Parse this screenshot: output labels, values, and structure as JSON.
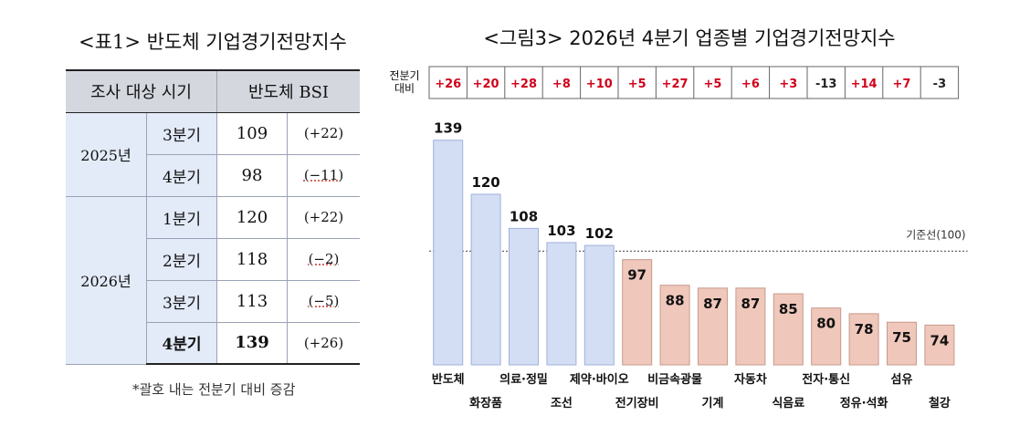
{
  "table": {
    "title": "<표1> 반도체 기업경기전망지수",
    "headers": [
      "조사 대상 시기",
      "반도체 BSI"
    ],
    "groups": [
      {
        "year": "2025년",
        "rows": [
          {
            "quarter": "3분기",
            "value": "109",
            "change": "(+22)",
            "negative": false,
            "bold": false
          },
          {
            "quarter": "4분기",
            "value": "98",
            "change": "(−11)",
            "negative": true,
            "bold": false
          }
        ]
      },
      {
        "year": "2026년",
        "rows": [
          {
            "quarter": "1분기",
            "value": "120",
            "change": "(+22)",
            "negative": false,
            "bold": false
          },
          {
            "quarter": "2분기",
            "value": "118",
            "change": "(−2)",
            "negative": true,
            "bold": false
          },
          {
            "quarter": "3분기",
            "value": "113",
            "change": "(−5)",
            "negative": true,
            "bold": false
          },
          {
            "quarter": "4분기",
            "value": "139",
            "change": "(+26)",
            "negative": false,
            "bold": true
          }
        ]
      }
    ],
    "note": "*괄호 내는 전분기 대비 증감"
  },
  "chart_data": {
    "type": "bar",
    "title": "<그림3> 2026년 4분기 업종별 기업경기전망지수",
    "change_row_label": "전분기 대비",
    "categories": [
      "반도체",
      "화장품",
      "의료·정밀",
      "조선",
      "제약·바이오",
      "전기장비",
      "비금속광물",
      "기계",
      "자동차",
      "식음료",
      "전자·통신",
      "정유·석화",
      "섬유",
      "철강"
    ],
    "values": [
      139,
      120,
      108,
      103,
      102,
      97,
      88,
      87,
      87,
      85,
      80,
      78,
      75,
      74
    ],
    "changes": [
      "+26",
      "+20",
      "+28",
      "+8",
      "+10",
      "+5",
      "+27",
      "+5",
      "+6",
      "+3",
      "-13",
      "+14",
      "+7",
      "-3"
    ],
    "reference_line": {
      "value": 100,
      "label": "기준선(100)"
    },
    "ylim": [
      60,
      145
    ],
    "colors": {
      "above": "#d3ddf3",
      "above_border": "#9fb2dc",
      "below": "#efc7bb",
      "below_border": "#c79a8c",
      "positive_change": "#d0021b",
      "negative_change": "#222222"
    }
  }
}
